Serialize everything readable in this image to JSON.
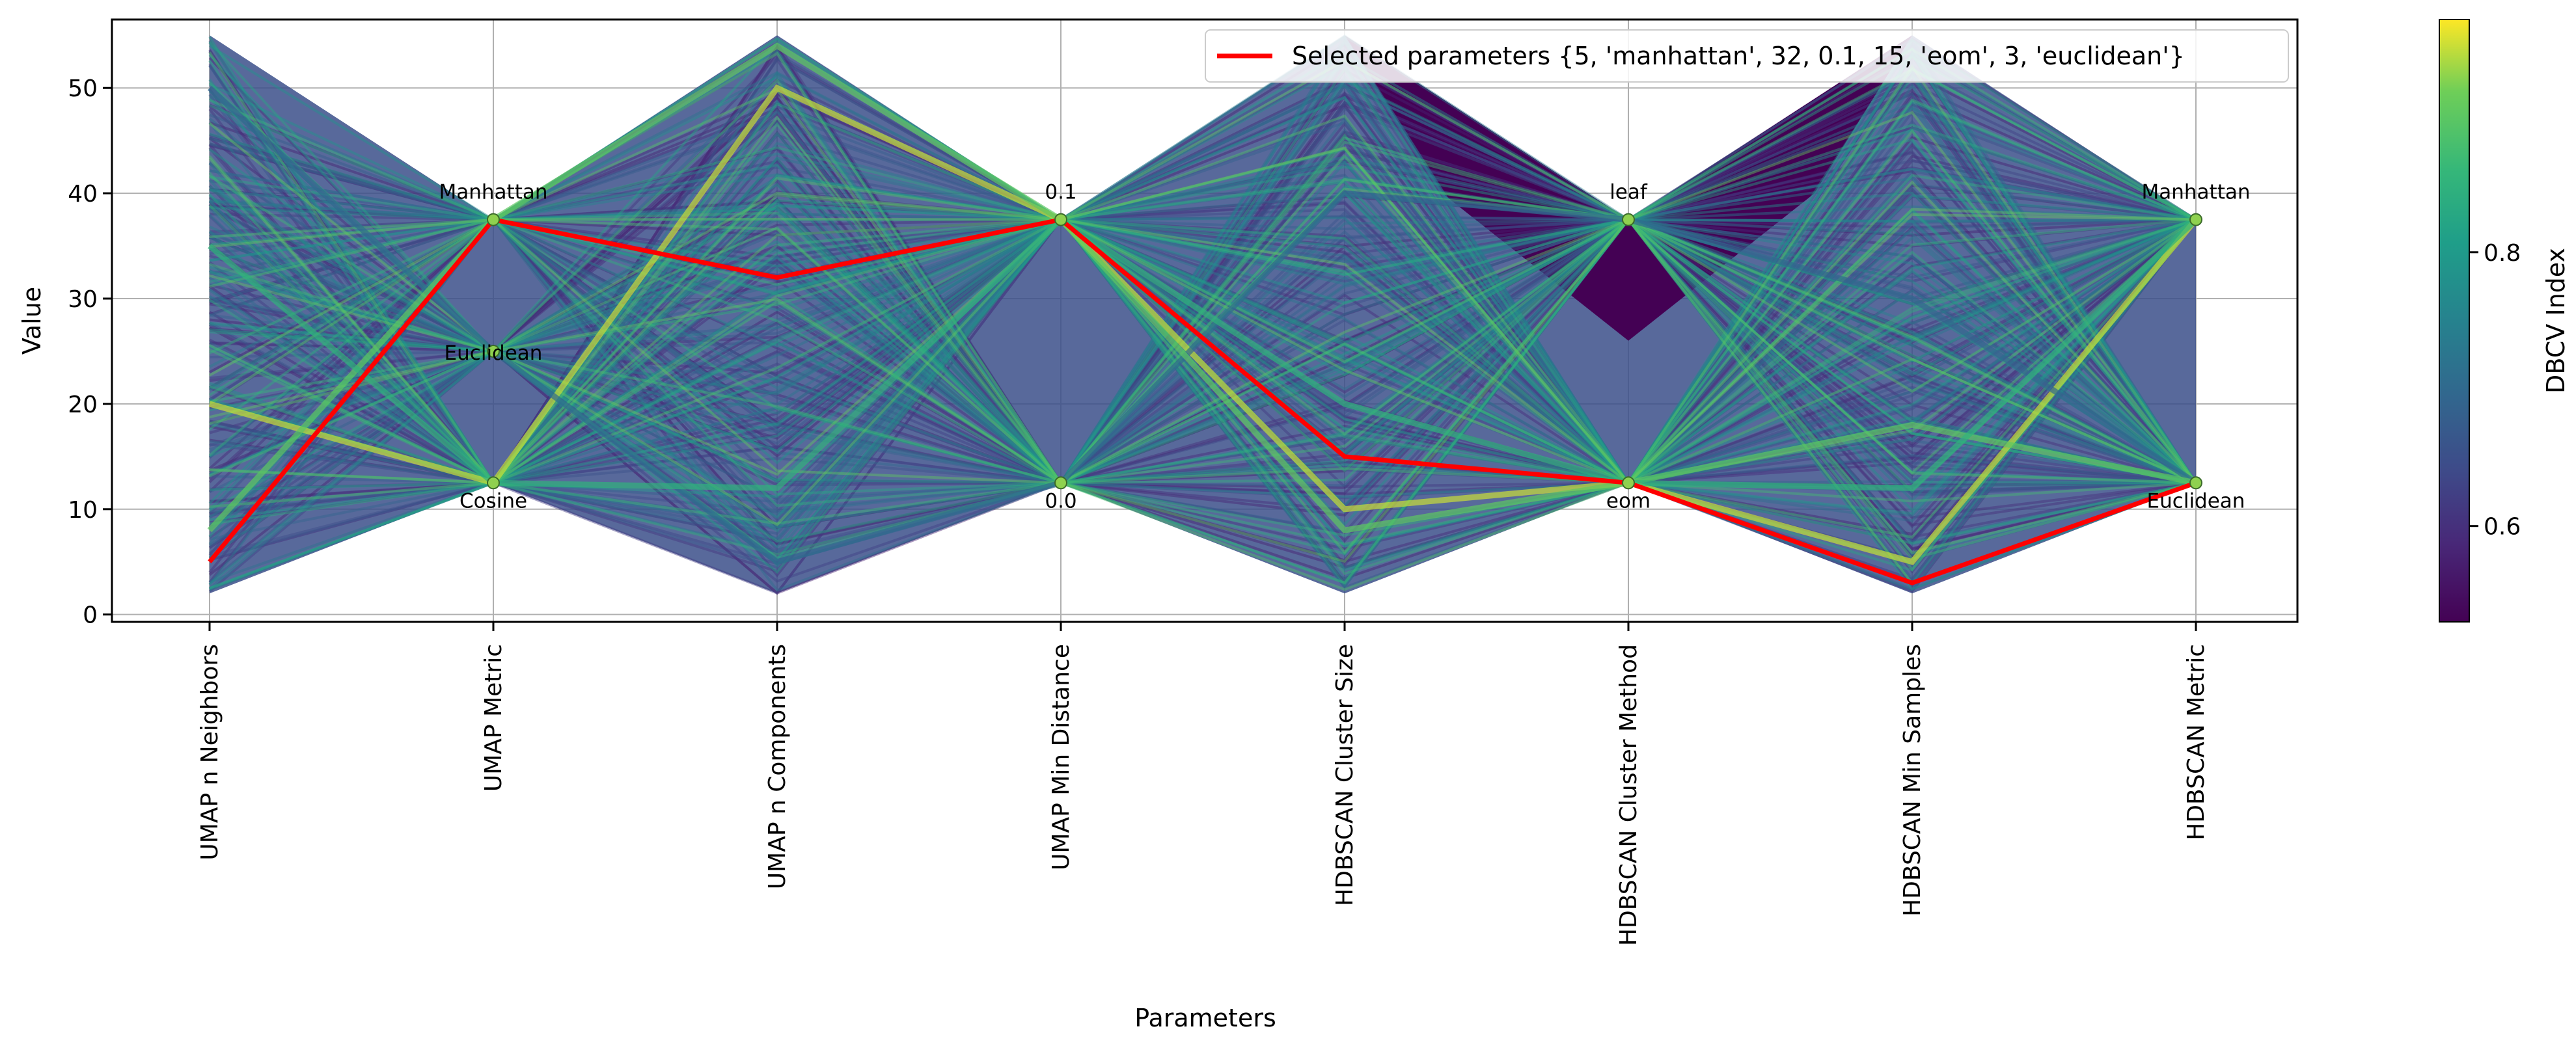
{
  "chart_data": {
    "type": "parallel_coordinates",
    "ylabel": "Value",
    "xlabel": "Parameters",
    "ylim": [
      -0.7,
      56.5
    ],
    "yticks": [
      0,
      10,
      20,
      30,
      40,
      50
    ],
    "grid": true,
    "axes": [
      {
        "name": "UMAP n Neighbors",
        "kind": "numeric",
        "range": [
          2,
          55
        ]
      },
      {
        "name": "UMAP Metric",
        "kind": "categorical",
        "categories": [
          {
            "label": "Cosine",
            "value": 12.5
          },
          {
            "label": "Euclidean",
            "value": 25
          },
          {
            "label": "Manhattan",
            "value": 37.5
          }
        ]
      },
      {
        "name": "UMAP n Components",
        "kind": "numeric",
        "range": [
          2,
          55
        ]
      },
      {
        "name": "UMAP Min Distance",
        "kind": "categorical",
        "categories": [
          {
            "label": "0.0",
            "value": 12.5
          },
          {
            "label": "0.1",
            "value": 37.5
          }
        ]
      },
      {
        "name": "HDBSCAN Cluster Size",
        "kind": "numeric",
        "range": [
          2,
          55
        ]
      },
      {
        "name": "HDBSCAN Cluster Method",
        "kind": "categorical",
        "categories": [
          {
            "label": "eom",
            "value": 12.5
          },
          {
            "label": "leaf",
            "value": 37.5
          }
        ]
      },
      {
        "name": "HDBSCAN Min Samples",
        "kind": "numeric",
        "range": [
          2,
          55
        ]
      },
      {
        "name": "HDBSCAN Metric",
        "kind": "categorical",
        "categories": [
          {
            "label": "Euclidean",
            "value": 12.5
          },
          {
            "label": "Manhattan",
            "value": 37.5
          }
        ]
      }
    ],
    "selected": {
      "legend_label": "Selected parameters {5, 'manhattan', 32, 0.1, 15, 'eom', 3, 'euclidean'}",
      "values": [
        5,
        37.5,
        32,
        37.5,
        15,
        12.5,
        3,
        12.5
      ],
      "color": "#ff0000"
    },
    "colorbar": {
      "label": "DBCV Index",
      "range": [
        0.53,
        0.97
      ],
      "ticks": [
        0.6,
        0.8
      ],
      "tick_labels": [
        "0.6",
        "0.8"
      ],
      "colormap": "viridis"
    },
    "sample_lines": [
      {
        "values": [
          20,
          12.5,
          50,
          37.5,
          10,
          12.5,
          5,
          37.5
        ],
        "dbcv": 0.95
      },
      {
        "values": [
          50,
          25,
          5,
          12.5,
          40,
          37.5,
          30,
          12.5
        ],
        "dbcv": 0.7
      },
      {
        "values": [
          8,
          37.5,
          54,
          37.5,
          8,
          12.5,
          18,
          12.5
        ],
        "dbcv": 0.9
      },
      {
        "values": [
          35,
          12.5,
          12,
          37.5,
          20,
          12.5,
          12,
          37.5
        ],
        "dbcv": 0.85
      }
    ]
  }
}
